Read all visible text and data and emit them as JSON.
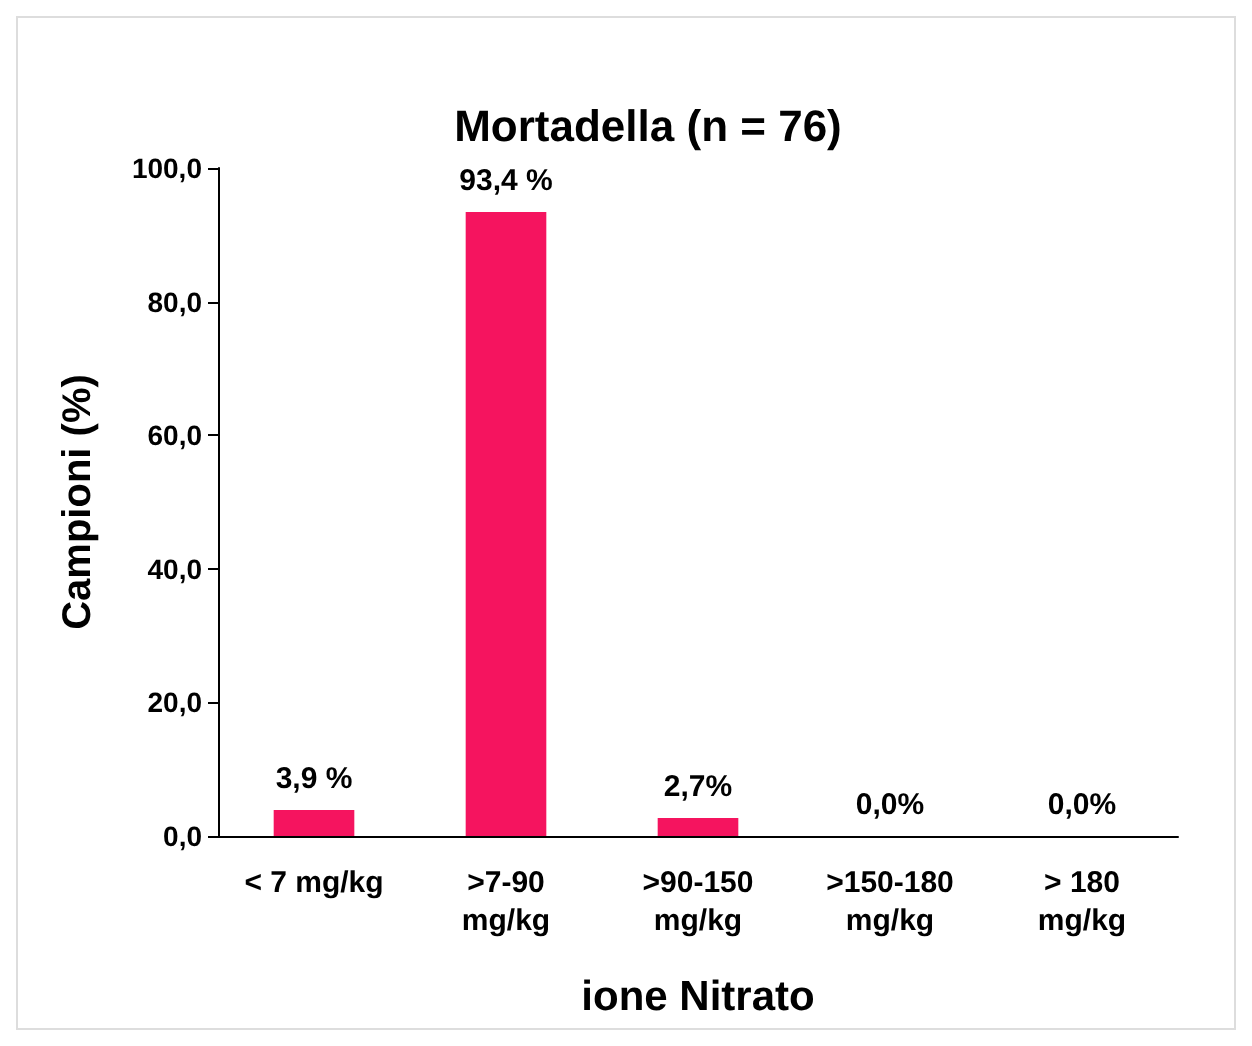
{
  "chart_data": {
    "type": "bar",
    "title": "Mortadella (n = 76)",
    "xlabel": "ione Nitrato",
    "ylabel": "Campioni (%)",
    "categories": [
      "< 7 mg/kg",
      ">7-90\nmg/kg",
      ">90-150\nmg/kg",
      ">150-180\nmg/kg",
      "> 180\nmg/kg"
    ],
    "values": [
      3.9,
      93.4,
      2.7,
      0,
      0
    ],
    "value_labels": [
      "3,9 %",
      "93,4 %",
      "2,7%",
      "0,0%",
      "0,0%"
    ],
    "color": "#f5145f",
    "ylim": [
      0,
      100
    ],
    "yticks": [
      {
        "value": 0,
        "label": "0,0"
      },
      {
        "value": 20,
        "label": "20,0"
      },
      {
        "value": 40,
        "label": "40,0"
      },
      {
        "value": 60,
        "label": "60,0"
      },
      {
        "value": 80,
        "label": "80,0"
      },
      {
        "value": 100,
        "label": "100,0"
      }
    ],
    "grid": false
  }
}
